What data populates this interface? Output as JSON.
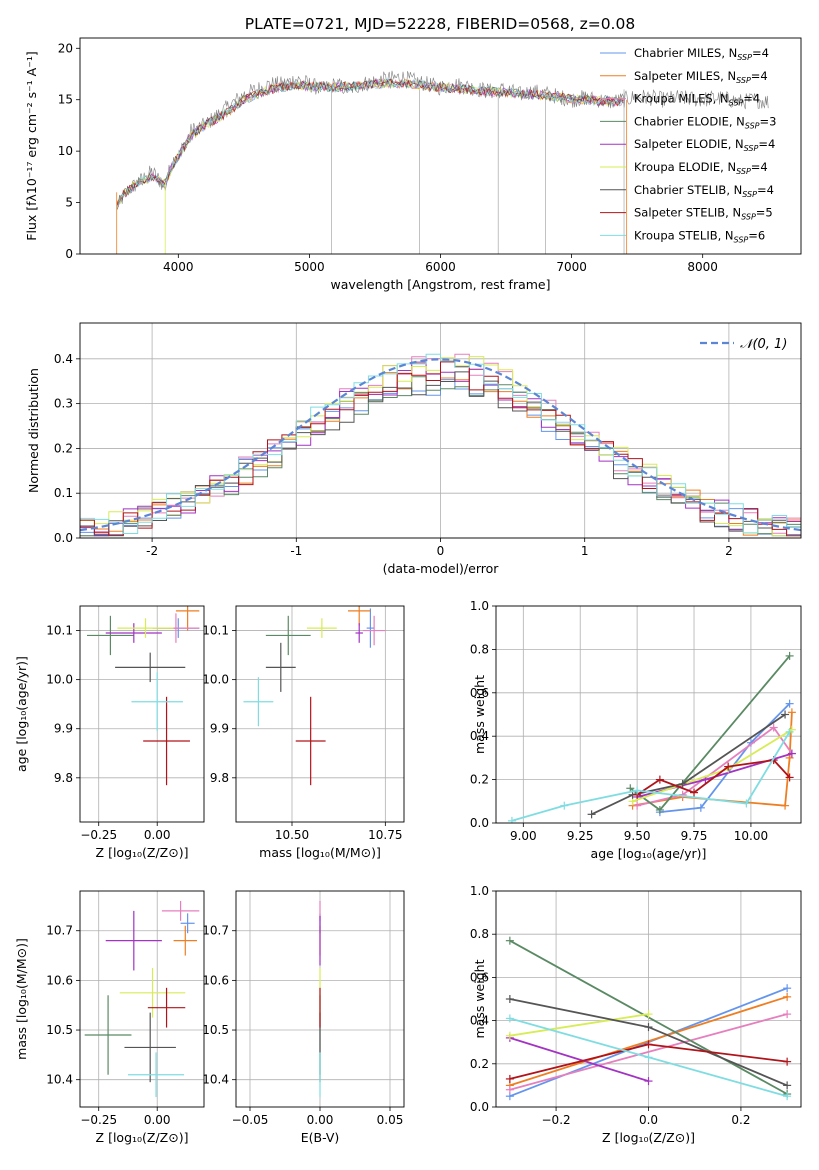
{
  "title": "PLATE=0721, MJD=52228, FIBERID=0568, z=0.08",
  "colors": {
    "Chabrier MILES": "#6495ed",
    "Salpeter MILES": "#ee7e22",
    "Kroupa MILES": "#e57fbe",
    "Chabrier ELODIE": "#5a8a64",
    "Salpeter ELODIE": "#a233c3",
    "Kroupa ELODIE": "#d8ec55",
    "Chabrier STELIB": "#555555",
    "Salpeter STELIB": "#b0141a",
    "Kroupa STELIB": "#7fdde2"
  },
  "chart_data": [
    {
      "id": "spectrum",
      "type": "line",
      "title": "PLATE=0721, MJD=52228, FIBERID=0568, z=0.08",
      "xlabel": "wavelength [Angstrom, rest frame]",
      "ylabel": "Flux [fλ10⁻¹⁷ erg cm⁻² s⁻¹ A⁻¹]",
      "xlim": [
        3250,
        8750
      ],
      "ylim": [
        0,
        21
      ],
      "xticks": [
        4000,
        5000,
        6000,
        7000,
        8000
      ],
      "yticks": [
        0,
        5,
        10,
        15,
        20
      ],
      "grid": false,
      "legend": "top-right",
      "legend_labels": [
        "Chabrier MILES, N_SSP=4",
        "Salpeter MILES, N_SSP=4",
        "Kroupa MILES, N_SSP=4",
        "Chabrier ELODIE, N_SSP=3",
        "Salpeter ELODIE, N_SSP=4",
        "Kroupa ELODIE, N_SSP=4",
        "Chabrier STELIB, N_SSP=4",
        "Salpeter STELIB, N_SSP=5",
        "Kroupa STELIB, N_SSP=6"
      ],
      "series": [
        {
          "name": "data",
          "x": [
            3530,
            3600,
            3700,
            3800,
            3900,
            3950,
            4000,
            4100,
            4200,
            4300,
            4400,
            4500,
            4600,
            4700,
            4800,
            4900,
            5000,
            5100,
            5200,
            5300,
            5400,
            5500,
            5600,
            5700,
            5800,
            5900,
            6000,
            6100,
            6200,
            6300,
            6400,
            6500,
            6600,
            6700,
            6800,
            6900,
            7000,
            7100,
            7200,
            7300,
            7400,
            7500,
            7600,
            7700,
            7800,
            7900,
            8000,
            8100,
            8200,
            8300,
            8400,
            8500
          ],
          "y": [
            4.5,
            6,
            7,
            8,
            6.5,
            9,
            9.5,
            12,
            12.5,
            13.5,
            14.5,
            15.5,
            16,
            16.5,
            16.5,
            17,
            16.5,
            16,
            16.5,
            16,
            16.5,
            16.8,
            17,
            17.2,
            16.8,
            16.5,
            16.2,
            16.5,
            16.3,
            16,
            15.8,
            16,
            15.5,
            15.8,
            15.6,
            15.3,
            15,
            15.2,
            15,
            14.8,
            15,
            15.3,
            15.2,
            15,
            15.2,
            15.1,
            15,
            15.2,
            15,
            14.8,
            15,
            14.8
          ]
        },
        {
          "name": "model",
          "x": [
            3530,
            3600,
            3700,
            3800,
            3900,
            3950,
            4000,
            4100,
            4200,
            4300,
            4400,
            4500,
            4600,
            4700,
            4800,
            4900,
            5000,
            5200,
            5400,
            5600,
            5800,
            6000,
            6200,
            6400,
            6600,
            6800,
            7000,
            7200,
            7400
          ],
          "y": [
            4.8,
            6,
            7,
            7.5,
            6.8,
            8.5,
            9.5,
            11.5,
            12.5,
            13.2,
            14,
            15,
            15.5,
            16,
            16.2,
            16.4,
            16.3,
            16.2,
            16.4,
            16.6,
            16.5,
            16.2,
            16,
            15.8,
            15.6,
            15.4,
            15.1,
            14.9,
            14.8
          ]
        }
      ]
    },
    {
      "id": "residuals",
      "type": "histogram",
      "xlabel": "(data-model)/error",
      "ylabel": "Normed distribution",
      "xlim": [
        -2.5,
        2.5
      ],
      "ylim": [
        0,
        0.48
      ],
      "xticks": [
        -2,
        -1,
        0,
        1,
        2
      ],
      "yticks": [
        0.0,
        0.1,
        0.2,
        0.3,
        0.4
      ],
      "grid": true,
      "legend": "top-right",
      "legend_label": "𝒩(0, 1)",
      "bin_width": 0.1,
      "series": [
        {
          "name": "𝒩(0, 1)",
          "type": "gaussian",
          "mu": 0,
          "sigma": 1
        }
      ]
    },
    {
      "id": "age_vs_Z",
      "type": "errorbar",
      "xlabel": "Z [log₁₀(Z/Z⊙)]",
      "ylabel": "age  [log₁₀(age/yr)]",
      "xlim": [
        -0.33,
        0.2
      ],
      "ylim": [
        9.71,
        10.15
      ],
      "xticks": [
        -0.25,
        0.0
      ],
      "xticklabels": [
        "−0.25",
        "0.00"
      ],
      "yticks": [
        9.8,
        9.9,
        10.0,
        10.1
      ],
      "grid": true,
      "points": [
        {
          "name": "Chabrier MILES",
          "x": 0.09,
          "y": 10.105,
          "xerr": 0.09,
          "yerr": 0.02
        },
        {
          "name": "Salpeter MILES",
          "x": 0.13,
          "y": 10.14,
          "xerr": 0.05,
          "yerr": 0.04
        },
        {
          "name": "Kroupa MILES",
          "x": 0.08,
          "y": 10.105,
          "xerr": 0.1,
          "yerr": 0.03
        },
        {
          "name": "Chabrier ELODIE",
          "x": -0.2,
          "y": 10.09,
          "xerr": 0.1,
          "yerr": 0.04
        },
        {
          "name": "Salpeter ELODIE",
          "x": -0.1,
          "y": 10.095,
          "xerr": 0.12,
          "yerr": 0.02
        },
        {
          "name": "Kroupa ELODIE",
          "x": -0.05,
          "y": 10.105,
          "xerr": 0.12,
          "yerr": 0.02
        },
        {
          "name": "Chabrier STELIB",
          "x": -0.03,
          "y": 10.025,
          "xerr": 0.15,
          "yerr": 0.03
        },
        {
          "name": "Salpeter STELIB",
          "x": 0.04,
          "y": 9.875,
          "xerr": 0.1,
          "yerr": 0.09
        },
        {
          "name": "Kroupa STELIB",
          "x": 0.0,
          "y": 9.955,
          "xerr": 0.11,
          "yerr": 0.06
        }
      ]
    },
    {
      "id": "age_vs_mass",
      "type": "errorbar",
      "xlabel": "mass [log₁₀(M/M⊙)]",
      "ylabel": "",
      "xlim": [
        10.35,
        10.8
      ],
      "ylim": [
        9.71,
        10.15
      ],
      "xticks": [
        10.5,
        10.75
      ],
      "xticklabels": [
        "10.50",
        "10.75"
      ],
      "yticks": [
        9.8,
        9.9,
        10.0,
        10.1
      ],
      "grid": true,
      "points": [
        {
          "name": "Chabrier MILES",
          "x": 10.71,
          "y": 10.105,
          "xerr": 0.01,
          "yerr": 0.04
        },
        {
          "name": "Salpeter MILES",
          "x": 10.68,
          "y": 10.14,
          "xerr": 0.03,
          "yerr": 0.03
        },
        {
          "name": "Kroupa MILES",
          "x": 10.72,
          "y": 10.1,
          "xerr": 0.03,
          "yerr": 0.03
        },
        {
          "name": "Chabrier ELODIE",
          "x": 10.49,
          "y": 10.09,
          "xerr": 0.06,
          "yerr": 0.04
        },
        {
          "name": "Salpeter ELODIE",
          "x": 10.68,
          "y": 10.095,
          "xerr": 0.01,
          "yerr": 0.02
        },
        {
          "name": "Kroupa ELODIE",
          "x": 10.58,
          "y": 10.105,
          "xerr": 0.04,
          "yerr": 0.02
        },
        {
          "name": "Chabrier STELIB",
          "x": 10.47,
          "y": 10.025,
          "xerr": 0.04,
          "yerr": 0.05
        },
        {
          "name": "Salpeter STELIB",
          "x": 10.55,
          "y": 9.875,
          "xerr": 0.04,
          "yerr": 0.09
        },
        {
          "name": "Kroupa STELIB",
          "x": 10.41,
          "y": 9.955,
          "xerr": 0.04,
          "yerr": 0.05
        }
      ]
    },
    {
      "id": "weight_vs_age",
      "type": "line",
      "xlabel": "age  [log₁₀(age/yr)]",
      "ylabel": "mass weight",
      "xlim": [
        8.88,
        10.22
      ],
      "ylim": [
        0,
        1
      ],
      "xticks": [
        9.0,
        9.25,
        9.5,
        9.75,
        10.0
      ],
      "xticklabels": [
        "9.00",
        "9.25",
        "9.50",
        "9.75",
        "10.00"
      ],
      "yticks": [
        0.0,
        0.2,
        0.4,
        0.6,
        0.8,
        1.0
      ],
      "grid": true,
      "series": [
        {
          "name": "Chabrier MILES",
          "x": [
            9.6,
            9.78,
            10.0,
            10.17
          ],
          "y": [
            0.05,
            0.07,
            0.37,
            0.55
          ]
        },
        {
          "name": "Salpeter MILES",
          "x": [
            9.48,
            9.7,
            10.15,
            10.17,
            10.18
          ],
          "y": [
            0.08,
            0.12,
            0.08,
            0.3,
            0.51
          ]
        },
        {
          "name": "Kroupa MILES",
          "x": [
            9.5,
            9.7,
            10.1,
            10.18
          ],
          "y": [
            0.08,
            0.13,
            0.44,
            0.32
          ]
        },
        {
          "name": "Chabrier ELODIE",
          "x": [
            9.47,
            9.6,
            10.17
          ],
          "y": [
            0.16,
            0.06,
            0.77
          ]
        },
        {
          "name": "Salpeter ELODIE",
          "x": [
            9.5,
            9.8,
            10.18
          ],
          "y": [
            0.12,
            0.2,
            0.32
          ]
        },
        {
          "name": "Kroupa ELODIE",
          "x": [
            9.48,
            9.9,
            10.18
          ],
          "y": [
            0.1,
            0.25,
            0.43
          ]
        },
        {
          "name": "Chabrier STELIB",
          "x": [
            9.3,
            9.48,
            9.7,
            10.15
          ],
          "y": [
            0.04,
            0.13,
            0.18,
            0.5
          ]
        },
        {
          "name": "Salpeter STELIB",
          "x": [
            9.5,
            9.6,
            9.75,
            9.9,
            10.1,
            10.17
          ],
          "y": [
            0.13,
            0.2,
            0.14,
            0.26,
            0.29,
            0.21
          ]
        },
        {
          "name": "Kroupa STELIB",
          "x": [
            8.95,
            9.18,
            9.5,
            9.98,
            10.17
          ],
          "y": [
            0.01,
            0.08,
            0.15,
            0.09,
            0.42
          ]
        }
      ]
    },
    {
      "id": "mass_vs_Z",
      "type": "errorbar",
      "xlabel": "Z [log₁₀(Z/Z⊙)]",
      "ylabel": "mass [log₁₀(M/M⊙)]",
      "xlim": [
        -0.33,
        0.2
      ],
      "ylim": [
        10.345,
        10.78
      ],
      "xticks": [
        -0.25,
        0.0
      ],
      "xticklabels": [
        "−0.25",
        "0.00"
      ],
      "yticks": [
        10.4,
        10.5,
        10.6,
        10.7
      ],
      "grid": true,
      "points": [
        {
          "name": "Chabrier MILES",
          "x": 0.13,
          "y": 10.715,
          "xerr": 0.03,
          "yerr": 0.02
        },
        {
          "name": "Salpeter MILES",
          "x": 0.12,
          "y": 10.68,
          "xerr": 0.05,
          "yerr": 0.03
        },
        {
          "name": "Kroupa MILES",
          "x": 0.1,
          "y": 10.74,
          "xerr": 0.08,
          "yerr": 0.02
        },
        {
          "name": "Chabrier ELODIE",
          "x": -0.21,
          "y": 10.49,
          "xerr": 0.1,
          "yerr": 0.08
        },
        {
          "name": "Salpeter ELODIE",
          "x": -0.1,
          "y": 10.68,
          "xerr": 0.12,
          "yerr": 0.06
        },
        {
          "name": "Kroupa ELODIE",
          "x": -0.02,
          "y": 10.575,
          "xerr": 0.14,
          "yerr": 0.05
        },
        {
          "name": "Chabrier STELIB",
          "x": -0.03,
          "y": 10.465,
          "xerr": 0.11,
          "yerr": 0.07
        },
        {
          "name": "Salpeter STELIB",
          "x": 0.04,
          "y": 10.545,
          "xerr": 0.08,
          "yerr": 0.04
        },
        {
          "name": "Kroupa STELIB",
          "x": -0.005,
          "y": 10.41,
          "xerr": 0.12,
          "yerr": 0.045
        }
      ]
    },
    {
      "id": "mass_vs_EBV",
      "type": "errorbar",
      "xlabel": "E(B-V)",
      "ylabel": "",
      "xlim": [
        -0.06,
        0.06
      ],
      "ylim": [
        10.345,
        10.78
      ],
      "xticks": [
        -0.05,
        0.0,
        0.05
      ],
      "xticklabels": [
        "−0.05",
        "0.00",
        "0.05"
      ],
      "yticks": [
        10.4,
        10.5,
        10.6,
        10.7
      ],
      "grid": true,
      "points": [
        {
          "name": "Chabrier MILES",
          "x": 0,
          "y": 10.715,
          "xerr": 0,
          "yerr": 0.02
        },
        {
          "name": "Salpeter MILES",
          "x": 0,
          "y": 10.68,
          "xerr": 0,
          "yerr": 0.03
        },
        {
          "name": "Kroupa MILES",
          "x": 0,
          "y": 10.74,
          "xerr": 0,
          "yerr": 0.02
        },
        {
          "name": "Chabrier ELODIE",
          "x": 0,
          "y": 10.49,
          "xerr": 0,
          "yerr": 0.08
        },
        {
          "name": "Salpeter ELODIE",
          "x": 0,
          "y": 10.68,
          "xerr": 0,
          "yerr": 0.05
        },
        {
          "name": "Kroupa ELODIE",
          "x": 0,
          "y": 10.575,
          "xerr": 0,
          "yerr": 0.05
        },
        {
          "name": "Chabrier STELIB",
          "x": 0,
          "y": 10.465,
          "xerr": 0,
          "yerr": 0.07
        },
        {
          "name": "Salpeter STELIB",
          "x": 0,
          "y": 10.545,
          "xerr": 0,
          "yerr": 0.04
        },
        {
          "name": "Kroupa STELIB",
          "x": 0,
          "y": 10.41,
          "xerr": 0,
          "yerr": 0.045
        }
      ]
    },
    {
      "id": "weight_vs_Z",
      "type": "line",
      "xlabel": "Z [log₁₀(Z/Z⊙)]",
      "ylabel": "mass weight",
      "xlim": [
        -0.33,
        0.33
      ],
      "ylim": [
        0,
        1
      ],
      "xticks": [
        -0.2,
        0.0,
        0.2
      ],
      "xticklabels": [
        "−0.2",
        "0.0",
        "0.2"
      ],
      "yticks": [
        0.0,
        0.2,
        0.4,
        0.6,
        0.8,
        1.0
      ],
      "grid": true,
      "series": [
        {
          "name": "Chabrier MILES",
          "x": [
            -0.3,
            0.3
          ],
          "y": [
            0.05,
            0.55
          ]
        },
        {
          "name": "Salpeter MILES",
          "x": [
            -0.3,
            0.3
          ],
          "y": [
            0.1,
            0.51
          ]
        },
        {
          "name": "Kroupa MILES",
          "x": [
            -0.3,
            0.3
          ],
          "y": [
            0.08,
            0.43
          ]
        },
        {
          "name": "Chabrier ELODIE",
          "x": [
            -0.3,
            0.3
          ],
          "y": [
            0.77,
            0.06
          ]
        },
        {
          "name": "Salpeter ELODIE",
          "x": [
            -0.3,
            0.0
          ],
          "y": [
            0.32,
            0.12
          ]
        },
        {
          "name": "Kroupa ELODIE",
          "x": [
            -0.3,
            0.0
          ],
          "y": [
            0.33,
            0.43
          ]
        },
        {
          "name": "Chabrier STELIB",
          "x": [
            -0.3,
            0.0,
            0.3
          ],
          "y": [
            0.5,
            0.37,
            0.1
          ]
        },
        {
          "name": "Salpeter STELIB",
          "x": [
            -0.3,
            0.0,
            0.3
          ],
          "y": [
            0.13,
            0.29,
            0.21
          ]
        },
        {
          "name": "Kroupa STELIB",
          "x": [
            -0.3,
            0.0,
            0.3
          ],
          "y": [
            0.41,
            0.23,
            0.05
          ]
        }
      ]
    }
  ]
}
